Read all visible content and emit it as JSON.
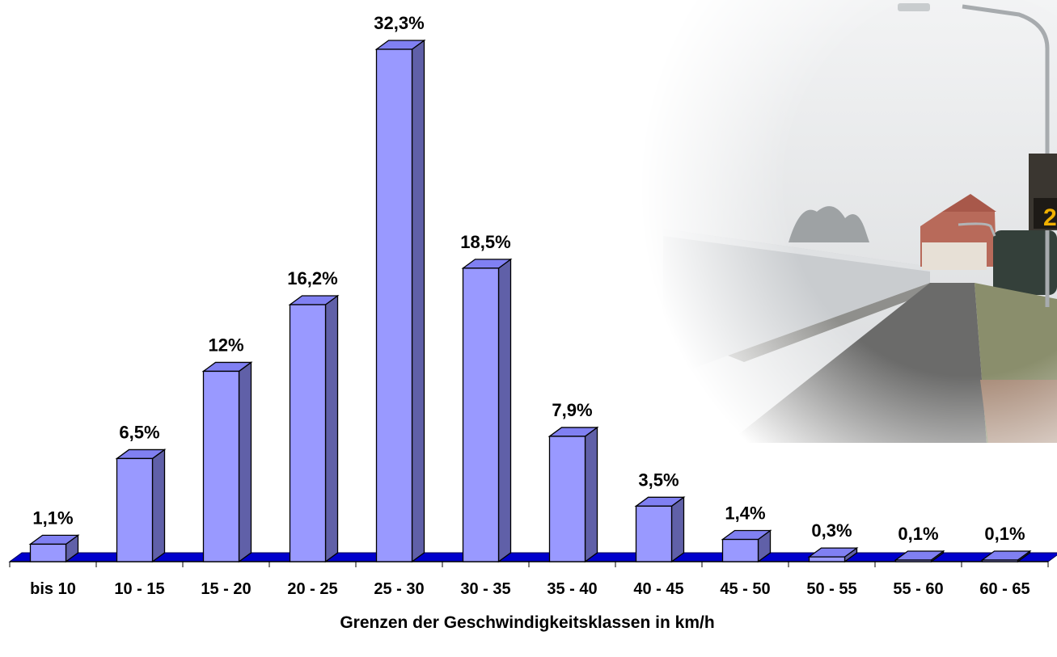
{
  "chart_data": {
    "type": "bar",
    "style": "3d-column",
    "categories": [
      "bis 10",
      "10 - 15",
      "15 - 20",
      "20 - 25",
      "25 - 30",
      "30 - 35",
      "35 - 40",
      "40 - 45",
      "45 - 50",
      "50 - 55",
      "55 - 60",
      "60 - 65"
    ],
    "values": [
      1.1,
      6.5,
      12,
      16.2,
      32.3,
      18.5,
      7.9,
      3.5,
      1.4,
      0.3,
      0.1,
      0.1
    ],
    "data_labels": [
      "1,1%",
      "6,5%",
      "12%",
      "16,2%",
      "32,3%",
      "18,5%",
      "7,9%",
      "3,5%",
      "1,4%",
      "0,3%",
      "0,1%",
      "0,1%"
    ],
    "title": "",
    "xlabel": "Grenzen der Geschwindigkeitsklassen in km/h",
    "ylabel": "",
    "ylim": [
      0,
      32.3
    ],
    "grid": false,
    "legend": "none",
    "colors": {
      "bar_front": "#9999ff",
      "bar_top": "#8080f2",
      "bar_side": "#6060a8",
      "floor": "#0000cc",
      "outline": "#000000"
    }
  }
}
